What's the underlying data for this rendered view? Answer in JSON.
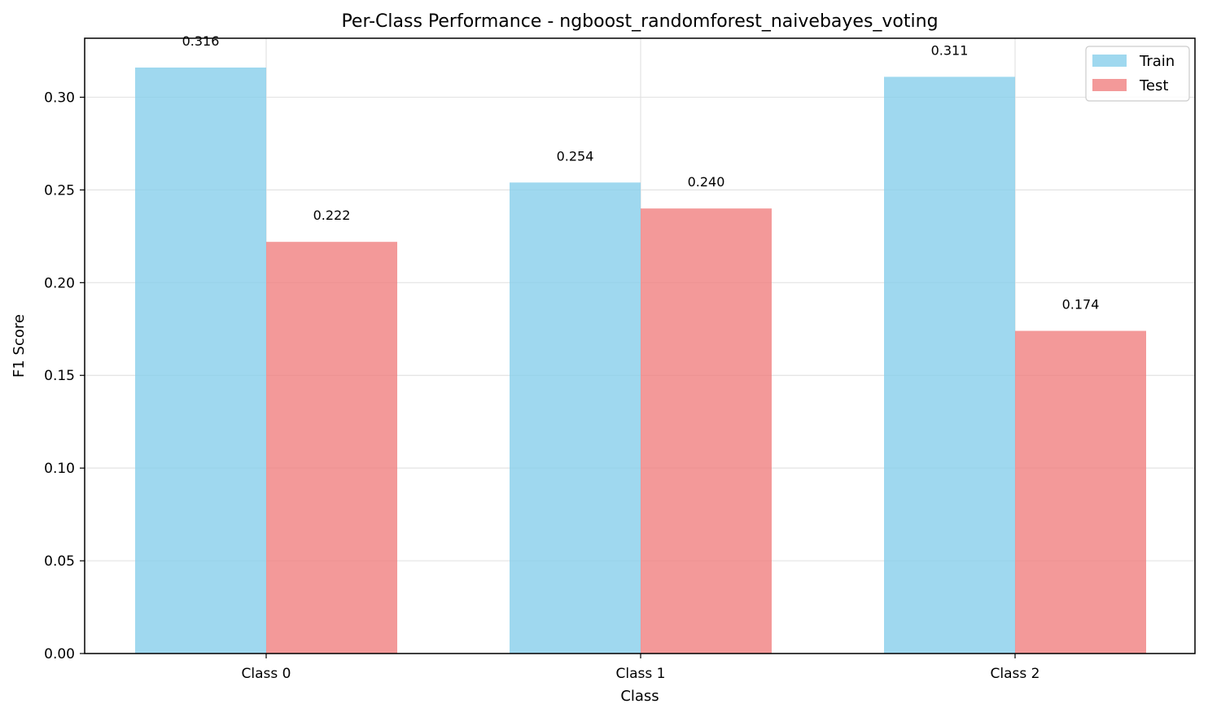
{
  "chart_data": {
    "type": "bar",
    "title": "Per-Class Performance - ngboost_randomforest_naivebayes_voting",
    "xlabel": "Class",
    "ylabel": "F1 Score",
    "categories": [
      "Class 0",
      "Class 1",
      "Class 2"
    ],
    "series": [
      {
        "name": "Train",
        "values": [
          0.316,
          0.254,
          0.311
        ],
        "labels": [
          "0.316",
          "0.254",
          "0.311"
        ],
        "color": "#87ceeb"
      },
      {
        "name": "Test",
        "values": [
          0.222,
          0.24,
          0.174
        ],
        "labels": [
          "0.222",
          "0.240",
          "0.174"
        ],
        "color": "#f08080"
      }
    ],
    "ylim": [
      0,
      0.3318
    ],
    "yticks": [
      0.0,
      0.05,
      0.1,
      0.15,
      0.2,
      0.25,
      0.3
    ],
    "ytick_labels": [
      "0.00",
      "0.05",
      "0.10",
      "0.15",
      "0.20",
      "0.25",
      "0.30"
    ],
    "grid": true,
    "legend_position": "top-right"
  }
}
